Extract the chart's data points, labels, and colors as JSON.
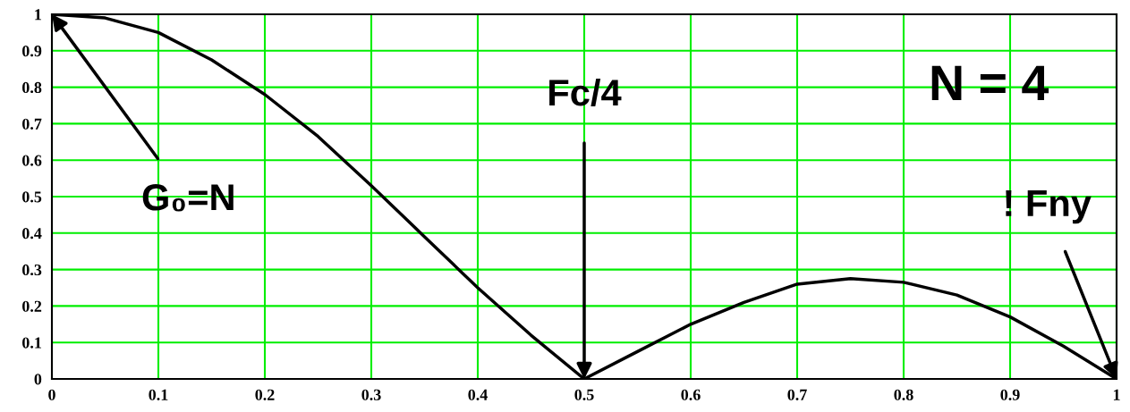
{
  "chart_data": {
    "type": "line",
    "x": [
      0,
      0.05,
      0.1,
      0.15,
      0.2,
      0.25,
      0.3,
      0.35,
      0.4,
      0.45,
      0.5,
      0.55,
      0.6,
      0.65,
      0.7,
      0.75,
      0.8,
      0.85,
      0.9,
      0.95,
      1
    ],
    "series": [
      {
        "color": "#000000",
        "values": [
          1,
          0.99,
          0.95,
          0.875,
          0.78,
          0.665,
          0.53,
          0.39,
          0.25,
          0.12,
          0,
          0.075,
          0.15,
          0.21,
          0.26,
          0.275,
          0.265,
          0.23,
          0.17,
          0.09,
          0
        ]
      }
    ],
    "xlim": [
      0,
      1
    ],
    "ylim": [
      0,
      1
    ],
    "xticks": [
      0,
      0.1,
      0.2,
      0.3,
      0.4,
      0.5,
      0.6,
      0.7,
      0.8,
      0.9,
      1
    ],
    "yticks": [
      0,
      0.1,
      0.2,
      0.3,
      0.4,
      0.5,
      0.6,
      0.7,
      0.8,
      0.9,
      1
    ],
    "grid": true,
    "marker": "none",
    "line_style": "solid",
    "legend": false,
    "annotations": [
      {
        "text": "G₀=N",
        "x": 0,
        "y": 1
      },
      {
        "text": "Fc/4",
        "x": 0.5,
        "y": 0
      },
      {
        "text": "! Fny",
        "x": 1,
        "y": 0
      },
      "N = 4"
    ]
  }
}
